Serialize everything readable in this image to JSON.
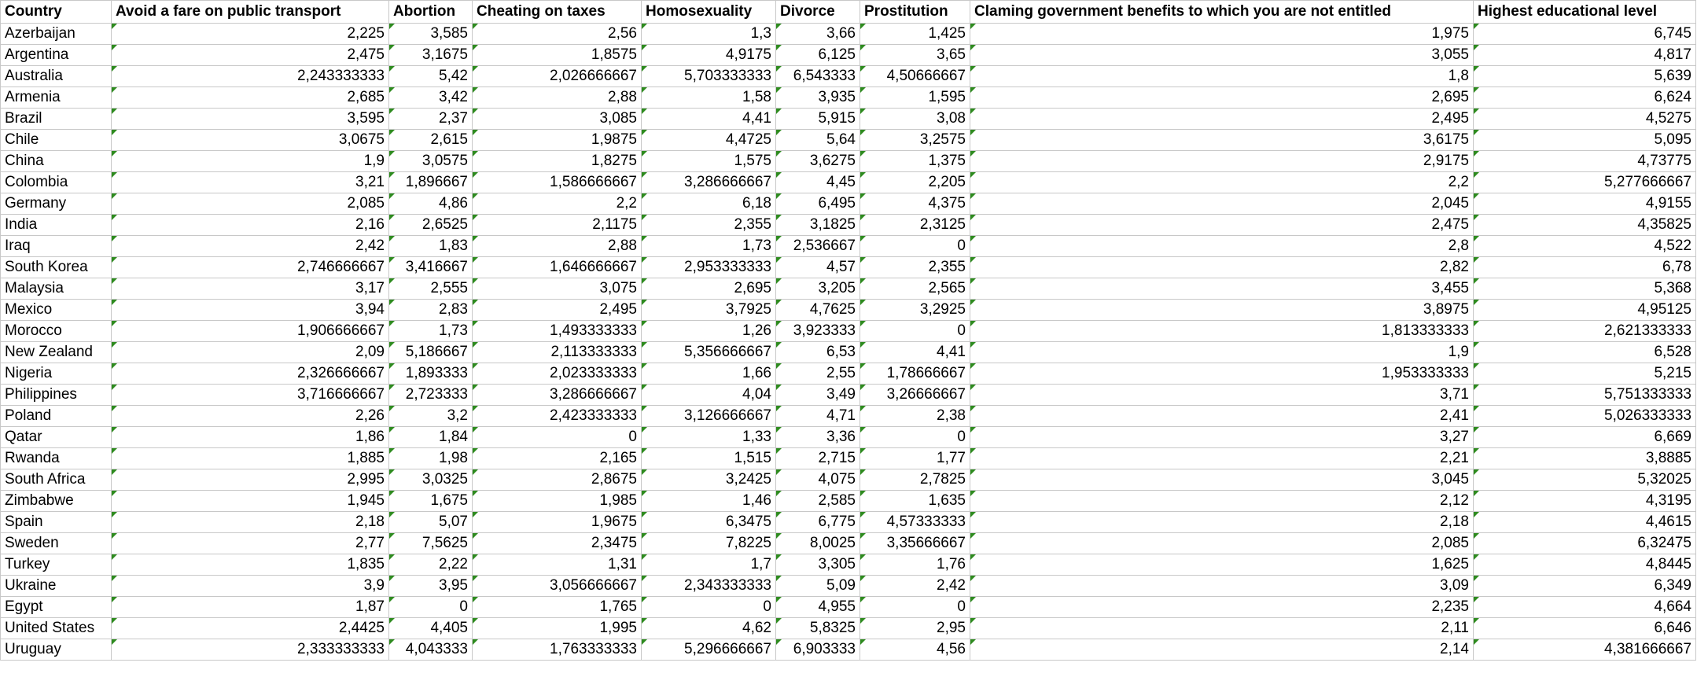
{
  "columns": [
    "Country",
    "Avoid a fare on public transport",
    "Abortion",
    "Cheating on taxes",
    "Homosexuality",
    "Divorce",
    "Prostitution",
    "Claming government benefits to which you are not entitled",
    "Highest educational level"
  ],
  "rows": [
    [
      "Azerbaijan",
      "2,225",
      "3,585",
      "2,56",
      "1,3",
      "3,66",
      "1,425",
      "1,975",
      "6,745"
    ],
    [
      "Argentina",
      "2,475",
      "3,1675",
      "1,8575",
      "4,9175",
      "6,125",
      "3,65",
      "3,055",
      "4,817"
    ],
    [
      "Australia",
      "2,243333333",
      "5,42",
      "2,026666667",
      "5,703333333",
      "6,543333",
      "4,50666667",
      "1,8",
      "5,639"
    ],
    [
      "Armenia",
      "2,685",
      "3,42",
      "2,88",
      "1,58",
      "3,935",
      "1,595",
      "2,695",
      "6,624"
    ],
    [
      "Brazil",
      "3,595",
      "2,37",
      "3,085",
      "4,41",
      "5,915",
      "3,08",
      "2,495",
      "4,5275"
    ],
    [
      "Chile",
      "3,0675",
      "2,615",
      "1,9875",
      "4,4725",
      "5,64",
      "3,2575",
      "3,6175",
      "5,095"
    ],
    [
      "China",
      "1,9",
      "3,0575",
      "1,8275",
      "1,575",
      "3,6275",
      "1,375",
      "2,9175",
      "4,73775"
    ],
    [
      "Colombia",
      "3,21",
      "1,896667",
      "1,586666667",
      "3,286666667",
      "4,45",
      "2,205",
      "2,2",
      "5,277666667"
    ],
    [
      "Germany",
      "2,085",
      "4,86",
      "2,2",
      "6,18",
      "6,495",
      "4,375",
      "2,045",
      "4,9155"
    ],
    [
      "India",
      "2,16",
      "2,6525",
      "2,1175",
      "2,355",
      "3,1825",
      "2,3125",
      "2,475",
      "4,35825"
    ],
    [
      "Iraq",
      "2,42",
      "1,83",
      "2,88",
      "1,73",
      "2,536667",
      "0",
      "2,8",
      "4,522"
    ],
    [
      "South Korea",
      "2,746666667",
      "3,416667",
      "1,646666667",
      "2,953333333",
      "4,57",
      "2,355",
      "2,82",
      "6,78"
    ],
    [
      "Malaysia",
      "3,17",
      "2,555",
      "3,075",
      "2,695",
      "3,205",
      "2,565",
      "3,455",
      "5,368"
    ],
    [
      "Mexico",
      "3,94",
      "2,83",
      "2,495",
      "3,7925",
      "4,7625",
      "3,2925",
      "3,8975",
      "4,95125"
    ],
    [
      "Morocco",
      "1,906666667",
      "1,73",
      "1,493333333",
      "1,26",
      "3,923333",
      "0",
      "1,813333333",
      "2,621333333"
    ],
    [
      "New Zealand",
      "2,09",
      "5,186667",
      "2,113333333",
      "5,356666667",
      "6,53",
      "4,41",
      "1,9",
      "6,528"
    ],
    [
      "Nigeria",
      "2,326666667",
      "1,893333",
      "2,023333333",
      "1,66",
      "2,55",
      "1,78666667",
      "1,953333333",
      "5,215"
    ],
    [
      "Philippines",
      "3,716666667",
      "2,723333",
      "3,286666667",
      "4,04",
      "3,49",
      "3,26666667",
      "3,71",
      "5,751333333"
    ],
    [
      "Poland",
      "2,26",
      "3,2",
      "2,423333333",
      "3,126666667",
      "4,71",
      "2,38",
      "2,41",
      "5,026333333"
    ],
    [
      "Qatar",
      "1,86",
      "1,84",
      "0",
      "1,33",
      "3,36",
      "0",
      "3,27",
      "6,669"
    ],
    [
      "Rwanda",
      "1,885",
      "1,98",
      "2,165",
      "1,515",
      "2,715",
      "1,77",
      "2,21",
      "3,8885"
    ],
    [
      "South Africa",
      "2,995",
      "3,0325",
      "2,8675",
      "3,2425",
      "4,075",
      "2,7825",
      "3,045",
      "5,32025"
    ],
    [
      "Zimbabwe",
      "1,945",
      "1,675",
      "1,985",
      "1,46",
      "2,585",
      "1,635",
      "2,12",
      "4,3195"
    ],
    [
      "Spain",
      "2,18",
      "5,07",
      "1,9675",
      "6,3475",
      "6,775",
      "4,57333333",
      "2,18",
      "4,4615"
    ],
    [
      "Sweden",
      "2,77",
      "7,5625",
      "2,3475",
      "7,8225",
      "8,0025",
      "3,35666667",
      "2,085",
      "6,32475"
    ],
    [
      "Turkey",
      "1,835",
      "2,22",
      "1,31",
      "1,7",
      "3,305",
      "1,76",
      "1,625",
      "4,8445"
    ],
    [
      "Ukraine",
      "3,9",
      "3,95",
      "3,056666667",
      "2,343333333",
      "5,09",
      "2,42",
      "3,09",
      "6,349"
    ],
    [
      "Egypt",
      "1,87",
      "0",
      "1,765",
      "0",
      "4,955",
      "0",
      "2,235",
      "4,664"
    ],
    [
      "United States",
      "2,4425",
      "4,405",
      "1,995",
      "4,62",
      "5,8325",
      "2,95",
      "2,11",
      "6,646"
    ],
    [
      "Uruguay",
      "2,333333333",
      "4,043333",
      "1,763333333",
      "5,296666667",
      "6,903333",
      "4,56",
      "2,14",
      "4,381666667"
    ]
  ],
  "colors": {
    "gridline": "#c8c8c8",
    "number_stored_as_text_flag": "#2e8b1f"
  },
  "icons": {
    "flag": "number-stored-as-text-flag-icon"
  }
}
